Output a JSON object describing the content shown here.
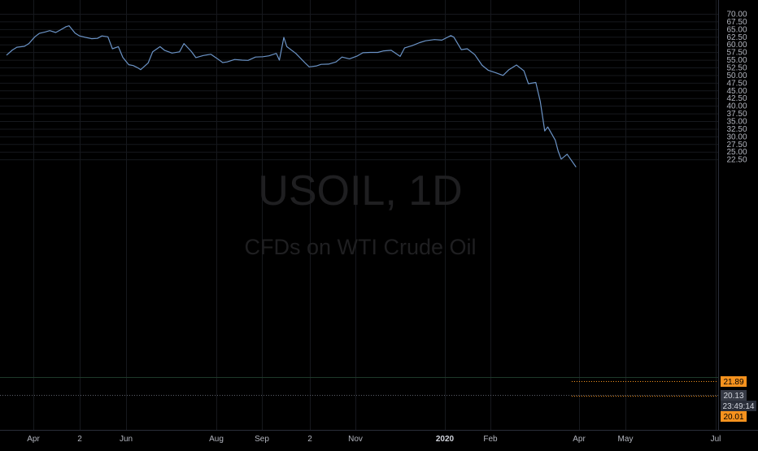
{
  "watermark": {
    "symbol": "USOIL, 1D",
    "description": "CFDs on WTI Crude Oil"
  },
  "price_labels": {
    "last_close": "21.89",
    "current": "20.13",
    "countdown": "23:49:14",
    "low": "20.01"
  },
  "colors": {
    "background": "#000000",
    "line": "#6b93c6",
    "grid": "#16181d",
    "axis_text": "#b2b5be",
    "price_tag_orange": "#f6921e",
    "price_tag_grey": "#363a45",
    "price_line_dark": "#1e3a2a"
  },
  "chart_data": {
    "type": "line",
    "title": "",
    "xlabel": "",
    "ylabel": "",
    "ylim": [
      16.2,
      71.5
    ],
    "y_ticks": [
      "70.00",
      "67.50",
      "65.00",
      "62.50",
      "60.00",
      "57.50",
      "55.00",
      "52.50",
      "50.00",
      "47.50",
      "45.00",
      "42.50",
      "40.00",
      "37.50",
      "35.00",
      "32.50",
      "30.00",
      "27.50",
      "25.00",
      "22.50"
    ],
    "x_ticks": [
      "Apr",
      "2",
      "Jun",
      "Aug",
      "Sep",
      "2",
      "Nov",
      "2020",
      "Feb",
      "Apr",
      "May",
      "Jul"
    ],
    "x_ticks_bold": [
      "2020"
    ],
    "grid": true,
    "series": [
      {
        "x": [
          "2019-03-14",
          "2019-03-18",
          "2019-03-21",
          "2019-03-26",
          "2019-03-29",
          "2019-04-02",
          "2019-04-05",
          "2019-04-09",
          "2019-04-12",
          "2019-04-16",
          "2019-04-19",
          "2019-04-23",
          "2019-04-25",
          "2019-04-29",
          "2019-05-02",
          "2019-05-06",
          "2019-05-10",
          "2019-05-14",
          "2019-05-17",
          "2019-05-21",
          "2019-05-24",
          "2019-05-28",
          "2019-05-31",
          "2019-06-04",
          "2019-06-07",
          "2019-06-10",
          "2019-06-12",
          "2019-06-17",
          "2019-06-20",
          "2019-06-25",
          "2019-06-28",
          "2019-07-03",
          "2019-07-08",
          "2019-07-11",
          "2019-07-16",
          "2019-07-19",
          "2019-07-24",
          "2019-07-29",
          "2019-08-02",
          "2019-08-06",
          "2019-08-09",
          "2019-08-14",
          "2019-08-19",
          "2019-08-23",
          "2019-08-28",
          "2019-09-02",
          "2019-09-06",
          "2019-09-11",
          "2019-09-13",
          "2019-09-16",
          "2019-09-18",
          "2019-09-24",
          "2019-09-30",
          "2019-10-03",
          "2019-10-08",
          "2019-10-11",
          "2019-10-16",
          "2019-10-21",
          "2019-10-25",
          "2019-10-30",
          "2019-11-04",
          "2019-11-08",
          "2019-11-13",
          "2019-11-18",
          "2019-11-22",
          "2019-11-27",
          "2019-12-03",
          "2019-12-06",
          "2019-12-11",
          "2019-12-16",
          "2019-12-20",
          "2019-12-26",
          "2019-12-31",
          "2020-01-06",
          "2020-01-08",
          "2020-01-13",
          "2020-01-17",
          "2020-01-22",
          "2020-01-27",
          "2020-01-31",
          "2020-02-05",
          "2020-02-10",
          "2020-02-14",
          "2020-02-19",
          "2020-02-24",
          "2020-02-27",
          "2020-03-03",
          "2020-03-06",
          "2020-03-09",
          "2020-03-11",
          "2020-03-16",
          "2020-03-18",
          "2020-03-20",
          "2020-03-24",
          "2020-03-27",
          "2020-03-30"
        ],
        "values": [
          56.5,
          58.2,
          59.1,
          59.4,
          60.3,
          62.5,
          63.6,
          64.1,
          64.5,
          63.9,
          64.7,
          65.8,
          66.1,
          63.7,
          62.8,
          62.3,
          61.9,
          62.0,
          62.8,
          62.5,
          58.6,
          59.3,
          55.8,
          53.4,
          53.1,
          52.4,
          51.8,
          54.0,
          57.6,
          59.3,
          58.1,
          57.2,
          57.6,
          60.3,
          57.7,
          55.7,
          56.4,
          56.8,
          55.5,
          54.1,
          54.3,
          55.1,
          54.9,
          54.8,
          55.9,
          56.0,
          56.3,
          57.1,
          54.9,
          62.3,
          59.3,
          57.1,
          54.1,
          52.7,
          53.0,
          53.5,
          53.6,
          54.3,
          55.9,
          55.3,
          56.2,
          57.3,
          57.4,
          57.4,
          57.9,
          58.1,
          56.1,
          58.9,
          59.6,
          60.6,
          61.2,
          61.6,
          61.4,
          62.9,
          62.4,
          58.3,
          58.6,
          56.7,
          53.2,
          51.6,
          50.8,
          49.9,
          51.8,
          53.3,
          51.4,
          47.2,
          47.6,
          41.4,
          31.8,
          33.1,
          28.8,
          25.2,
          22.6,
          24.2,
          22.1,
          20.0
        ]
      }
    ]
  }
}
